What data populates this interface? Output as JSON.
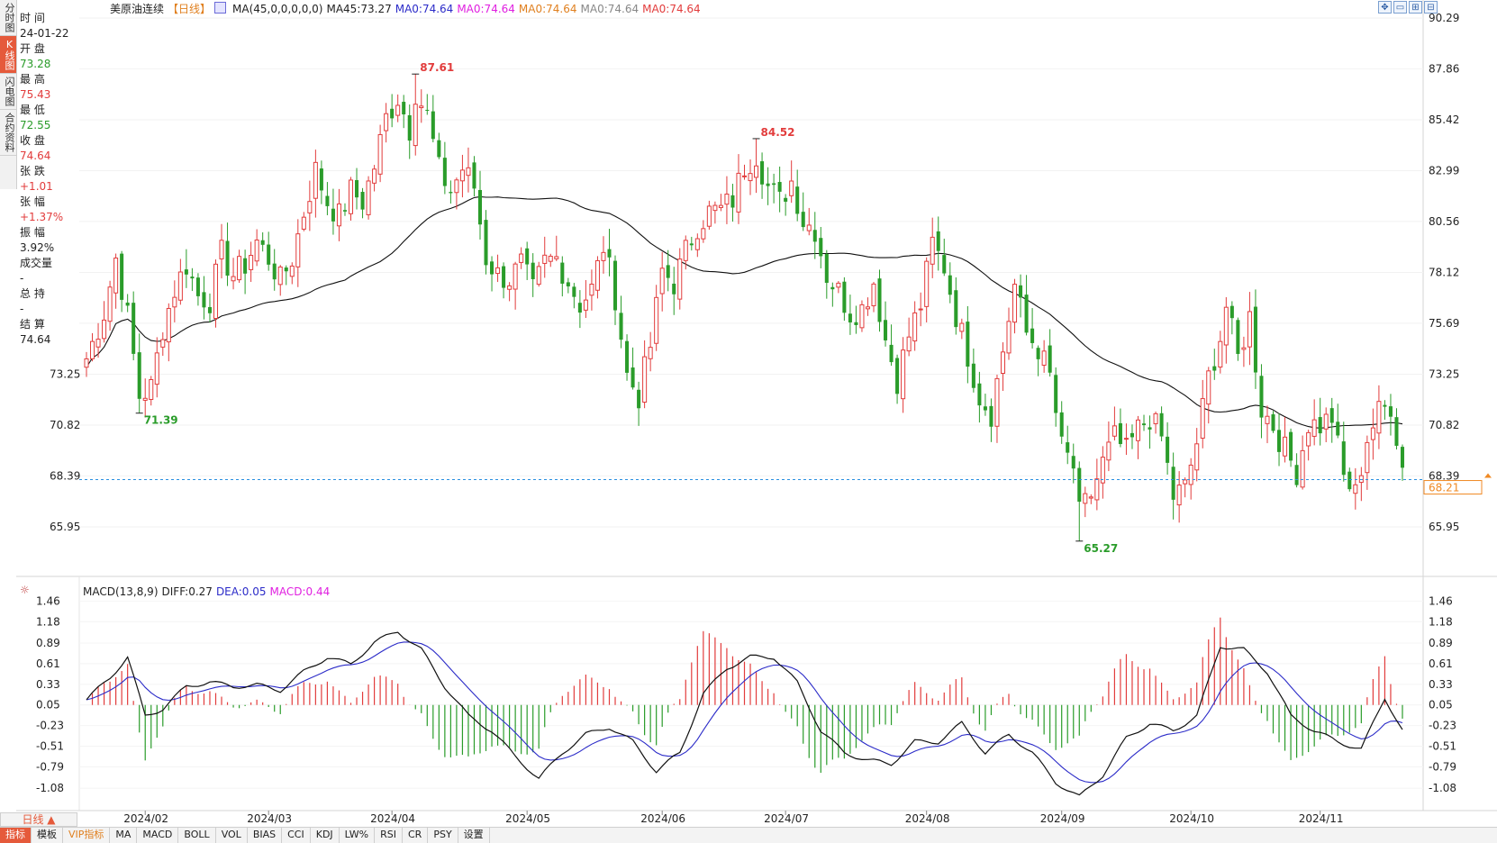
{
  "symbol_title": "美原油连续",
  "period_tag": "【日线】",
  "ma_indicator": {
    "main": "MA(45,0,0,0,0,0)",
    "values": [
      {
        "text": "MA45:73.27",
        "color": "#222222"
      },
      {
        "text": "MA0:74.64",
        "color": "#2b2bc8"
      },
      {
        "text": "MA0:74.64",
        "color": "#e020e0"
      },
      {
        "text": "MA0:74.64",
        "color": "#e08020"
      },
      {
        "text": "MA0:74.64",
        "color": "#888888"
      },
      {
        "text": "MA0:74.64",
        "color": "#e23c3c"
      }
    ]
  },
  "left_tabs": [
    {
      "label": "分时图",
      "active": false
    },
    {
      "label": "K线图",
      "active": true
    },
    {
      "label": "闪电图",
      "active": false
    },
    {
      "label": "合约资料",
      "active": false
    }
  ],
  "quote": [
    {
      "label": "时 间",
      "value": "24-01-22",
      "color": "#222222"
    },
    {
      "label": "开 盘",
      "value": "73.28",
      "color": "#2a9c2a"
    },
    {
      "label": "最 高",
      "value": "75.43",
      "color": "#e23c3c"
    },
    {
      "label": "最 低",
      "value": "72.55",
      "color": "#2a9c2a"
    },
    {
      "label": "收 盘",
      "value": "74.64",
      "color": "#e23c3c"
    },
    {
      "label": "张 跌",
      "value": "+1.01",
      "color": "#e23c3c"
    },
    {
      "label": "张 幅",
      "value": "+1.37%",
      "color": "#e23c3c"
    },
    {
      "label": "振 幅",
      "value": "3.92%",
      "color": "#222222"
    },
    {
      "label": "成交量",
      "value": "-",
      "color": "#222222"
    },
    {
      "label": "总 持",
      "value": "-",
      "color": "#222222"
    },
    {
      "label": "结 算",
      "value": "74.64",
      "color": "#222222"
    }
  ],
  "price_axis": [
    "90.29",
    "87.86",
    "85.42",
    "82.99",
    "80.56",
    "78.12",
    "75.69",
    "73.25",
    "70.82",
    "68.39",
    "65.95"
  ],
  "current_price": "68.21",
  "macd_indicator": {
    "name": "MACD(13,8,9)",
    "diff": "DIFF:0.27",
    "dea": "DEA:0.05",
    "macd": "MACD:0.44"
  },
  "macd_axis": [
    "1.46",
    "1.18",
    "0.89",
    "0.61",
    "0.33",
    "0.05",
    "-0.23",
    "-0.51",
    "-0.79",
    "-1.08"
  ],
  "time_axis": [
    "2024/02",
    "2024/03",
    "2024/04",
    "2024/05",
    "2024/06",
    "2024/07",
    "2024/08",
    "2024/09",
    "2024/10",
    "2024/11"
  ],
  "period_button": "日线 ▲",
  "bottom_tabs": [
    {
      "label": "指标",
      "active": true
    },
    {
      "label": "模板",
      "active": false
    },
    {
      "label": "VIP指标",
      "active": false,
      "vip": true
    },
    {
      "label": "MA",
      "active": false
    },
    {
      "label": "MACD",
      "active": false
    },
    {
      "label": "BOLL",
      "active": false
    },
    {
      "label": "VOL",
      "active": false
    },
    {
      "label": "BIAS",
      "active": false
    },
    {
      "label": "CCI",
      "active": false
    },
    {
      "label": "KDJ",
      "active": false
    },
    {
      "label": "LW%",
      "active": false
    },
    {
      "label": "RSI",
      "active": false
    },
    {
      "label": "CR",
      "active": false
    },
    {
      "label": "PSY",
      "active": false
    },
    {
      "label": "设置",
      "active": false
    }
  ],
  "toolbar_icons": [
    "fullscreen-icon",
    "window-restore-icon",
    "zoom-in-icon",
    "zoom-out-icon"
  ],
  "colors": {
    "up": "#e23c3c",
    "down": "#2a9c2a",
    "ma": "#111111",
    "dea": "#2b2bc8",
    "diff": "#111111",
    "price_line": "#2a8fe0",
    "price_tag": "#f08a24"
  },
  "chart_data": {
    "type": "candlestick",
    "y_range": [
      65.95,
      90.29
    ],
    "annotations": [
      {
        "text": "87.61",
        "value": 87.61,
        "kind": "high",
        "index": 56
      },
      {
        "text": "84.52",
        "value": 84.52,
        "kind": "high",
        "index": 114
      },
      {
        "text": "71.39",
        "value": 71.39,
        "kind": "low",
        "index": 9
      },
      {
        "text": "65.27",
        "value": 65.27,
        "kind": "low",
        "index": 169
      }
    ],
    "anchors": [
      [
        0,
        74.0
      ],
      [
        3,
        76.2
      ],
      [
        5,
        78.8
      ],
      [
        7,
        76.0
      ],
      [
        9,
        72.2
      ],
      [
        11,
        72.6
      ],
      [
        13,
        75.5
      ],
      [
        15,
        77.3
      ],
      [
        17,
        78.5
      ],
      [
        19,
        77.0
      ],
      [
        21,
        76.8
      ],
      [
        23,
        79.0
      ],
      [
        25,
        78.0
      ],
      [
        27,
        78.5
      ],
      [
        29,
        79.6
      ],
      [
        31,
        78.8
      ],
      [
        33,
        77.7
      ],
      [
        35,
        78.8
      ],
      [
        37,
        81.0
      ],
      [
        39,
        83.0
      ],
      [
        41,
        81.5
      ],
      [
        43,
        80.8
      ],
      [
        45,
        82.0
      ],
      [
        47,
        81.5
      ],
      [
        49,
        83.2
      ],
      [
        51,
        85.5
      ],
      [
        53,
        86.5
      ],
      [
        55,
        85.0
      ],
      [
        56,
        86.8
      ],
      [
        58,
        85.6
      ],
      [
        60,
        83.0
      ],
      [
        62,
        82.0
      ],
      [
        64,
        83.1
      ],
      [
        66,
        82.2
      ],
      [
        68,
        78.8
      ],
      [
        70,
        78.0
      ],
      [
        72,
        77.8
      ],
      [
        74,
        78.5
      ],
      [
        76,
        77.2
      ],
      [
        78,
        78.6
      ],
      [
        80,
        78.8
      ],
      [
        82,
        77.7
      ],
      [
        84,
        76.6
      ],
      [
        86,
        77.3
      ],
      [
        88,
        79.4
      ],
      [
        90,
        77.0
      ],
      [
        92,
        73.2
      ],
      [
        94,
        72.2
      ],
      [
        96,
        74.6
      ],
      [
        98,
        78.2
      ],
      [
        100,
        77.6
      ],
      [
        102,
        79.1
      ],
      [
        104,
        80.4
      ],
      [
        106,
        81.0
      ],
      [
        108,
        81.1
      ],
      [
        110,
        81.6
      ],
      [
        112,
        83.2
      ],
      [
        114,
        83.8
      ],
      [
        116,
        82.2
      ],
      [
        118,
        81.5
      ],
      [
        120,
        82.5
      ],
      [
        122,
        80.6
      ],
      [
        124,
        80.2
      ],
      [
        126,
        78.0
      ],
      [
        128,
        77.2
      ],
      [
        130,
        76.2
      ],
      [
        132,
        76.4
      ],
      [
        134,
        77.7
      ],
      [
        136,
        74.9
      ],
      [
        138,
        73.0
      ],
      [
        140,
        75.1
      ],
      [
        142,
        76.6
      ],
      [
        144,
        79.5
      ],
      [
        146,
        78.4
      ],
      [
        148,
        76.1
      ],
      [
        150,
        74.2
      ],
      [
        152,
        72.2
      ],
      [
        154,
        71.4
      ],
      [
        156,
        74.4
      ],
      [
        158,
        77.5
      ],
      [
        160,
        75.2
      ],
      [
        162,
        74.5
      ],
      [
        164,
        73.1
      ],
      [
        166,
        69.7
      ],
      [
        168,
        68.8
      ],
      [
        169,
        66.5
      ],
      [
        171,
        67.5
      ],
      [
        173,
        69.0
      ],
      [
        175,
        70.2
      ],
      [
        177,
        69.5
      ],
      [
        179,
        70.6
      ],
      [
        181,
        71.2
      ],
      [
        183,
        70.2
      ],
      [
        185,
        67.4
      ],
      [
        187,
        67.8
      ],
      [
        189,
        70.0
      ],
      [
        191,
        73.1
      ],
      [
        193,
        75.0
      ],
      [
        194,
        76.5
      ],
      [
        196,
        74.0
      ],
      [
        198,
        76.0
      ],
      [
        200,
        71.6
      ],
      [
        202,
        70.8
      ],
      [
        204,
        69.6
      ],
      [
        206,
        68.6
      ],
      [
        208,
        70.9
      ],
      [
        210,
        70.8
      ],
      [
        212,
        71.2
      ],
      [
        214,
        68.3
      ],
      [
        216,
        67.5
      ],
      [
        218,
        70.2
      ],
      [
        220,
        71.4
      ],
      [
        222,
        71.8
      ],
      [
        224,
        68.8
      ]
    ],
    "macd_range": [
      -1.2,
      1.55
    ],
    "macd_anchors": [
      [
        0,
        0.12
      ],
      [
        4,
        0.42
      ],
      [
        7,
        0.7
      ],
      [
        10,
        -0.1
      ],
      [
        13,
        0.0
      ],
      [
        17,
        0.3
      ],
      [
        21,
        0.36
      ],
      [
        25,
        0.3
      ],
      [
        29,
        0.32
      ],
      [
        33,
        0.25
      ],
      [
        37,
        0.5
      ],
      [
        41,
        0.7
      ],
      [
        45,
        0.6
      ],
      [
        49,
        0.9
      ],
      [
        53,
        1.05
      ],
      [
        57,
        0.8
      ],
      [
        61,
        0.3
      ],
      [
        65,
        -0.1
      ],
      [
        69,
        -0.3
      ],
      [
        73,
        -0.65
      ],
      [
        77,
        -0.95
      ],
      [
        81,
        -0.6
      ],
      [
        85,
        -0.35
      ],
      [
        89,
        -0.25
      ],
      [
        93,
        -0.45
      ],
      [
        97,
        -0.85
      ],
      [
        101,
        -0.6
      ],
      [
        105,
        0.2
      ],
      [
        109,
        0.55
      ],
      [
        113,
        0.7
      ],
      [
        117,
        0.7
      ],
      [
        121,
        0.35
      ],
      [
        125,
        -0.3
      ],
      [
        129,
        -0.6
      ],
      [
        133,
        -0.7
      ],
      [
        137,
        -0.75
      ],
      [
        141,
        -0.45
      ],
      [
        145,
        -0.45
      ],
      [
        149,
        -0.2
      ],
      [
        153,
        -0.6
      ],
      [
        157,
        -0.35
      ],
      [
        161,
        -0.6
      ],
      [
        165,
        -1.0
      ],
      [
        169,
        -1.2
      ],
      [
        173,
        -0.9
      ],
      [
        177,
        -0.4
      ],
      [
        181,
        -0.2
      ],
      [
        185,
        -0.3
      ],
      [
        189,
        -0.1
      ],
      [
        193,
        0.85
      ],
      [
        197,
        0.8
      ],
      [
        201,
        0.5
      ],
      [
        205,
        -0.1
      ],
      [
        209,
        -0.3
      ],
      [
        213,
        -0.45
      ],
      [
        217,
        -0.55
      ],
      [
        221,
        0.15
      ],
      [
        224,
        -0.3
      ]
    ]
  }
}
